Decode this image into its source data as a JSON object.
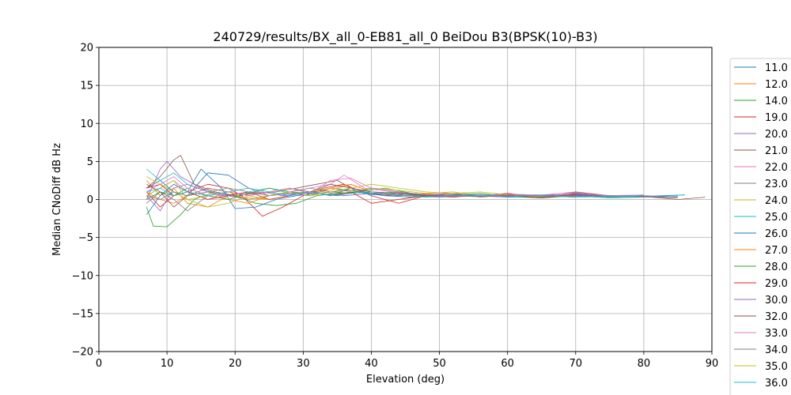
{
  "chart_data": {
    "type": "line",
    "title": "240729/results/BX_all_0-EB81_all_0 BeiDou B3(BPSK(10)-B3)",
    "xlabel": "Elevation (deg)",
    "ylabel": "Median CNoDiff dB Hz",
    "xlim": [
      0,
      90
    ],
    "ylim": [
      -20,
      20
    ],
    "xticks": [
      "0",
      "10",
      "20",
      "30",
      "40",
      "50",
      "60",
      "70",
      "80",
      "90"
    ],
    "yticks": [
      "20",
      "15",
      "10",
      "5",
      "0",
      "−5",
      "−10",
      "−15",
      "−20"
    ],
    "grid": true,
    "legend_position": "right, outside plot (clipped at bottom)",
    "series": [
      {
        "name": "11.0",
        "color": "#1f77b4",
        "x": [
          7,
          9,
          11,
          13,
          16,
          19,
          22,
          25,
          28,
          31,
          34,
          37,
          40,
          45,
          50,
          55,
          60,
          65,
          70,
          75,
          80,
          86
        ],
        "y": [
          1.5,
          2.5,
          1.0,
          0.5,
          3.5,
          3.2,
          1.5,
          0.5,
          1.0,
          0.8,
          1.5,
          1.2,
          0.8,
          0.5,
          0.6,
          0.4,
          0.5,
          0.3,
          0.8,
          0.5,
          0.4,
          0.6
        ]
      },
      {
        "name": "12.0",
        "color": "#ff7f0e",
        "x": [
          7,
          9,
          11,
          13,
          16,
          19,
          22,
          25,
          28,
          31,
          34,
          37,
          40,
          45,
          50,
          55,
          60,
          65,
          70,
          73
        ],
        "y": [
          2.5,
          0.5,
          1.5,
          -0.5,
          -1.0,
          0.5,
          0.2,
          0.0,
          0.5,
          1.0,
          1.2,
          2.0,
          1.0,
          0.8,
          0.6,
          0.5,
          0.3,
          0.4,
          0.6,
          0.3
        ]
      },
      {
        "name": "14.0",
        "color": "#2ca02c",
        "x": [
          7,
          8,
          10,
          12,
          14,
          17,
          20,
          23,
          26,
          29,
          32,
          35,
          38,
          42,
          46,
          50,
          55,
          60,
          65,
          70
        ],
        "y": [
          -1.0,
          -3.5,
          -3.6,
          -2.0,
          0.0,
          1.0,
          0.5,
          -0.5,
          -0.8,
          -0.5,
          0.5,
          0.8,
          1.0,
          1.5,
          0.8,
          0.5,
          0.6,
          0.4,
          0.2,
          0.5
        ]
      },
      {
        "name": "19.0",
        "color": "#d62728",
        "x": [
          7,
          9,
          11,
          13,
          16,
          19,
          21,
          24,
          27,
          30,
          33,
          36,
          40,
          44,
          48,
          52,
          56,
          60,
          65,
          70
        ],
        "y": [
          1.0,
          -1.0,
          0.5,
          1.0,
          2.0,
          1.5,
          0.5,
          -2.2,
          -1.0,
          0.5,
          1.5,
          2.0,
          0.5,
          -0.5,
          0.5,
          0.8,
          0.5,
          0.8,
          0.3,
          0.5
        ]
      },
      {
        "name": "20.0",
        "color": "#9467bd",
        "x": [
          7,
          9,
          10,
          12,
          15,
          18,
          21,
          24,
          27,
          30,
          33,
          36,
          40,
          45,
          50,
          55,
          60,
          65,
          70,
          75,
          80
        ],
        "y": [
          0.0,
          4.0,
          5.0,
          3.0,
          1.5,
          0.5,
          0.8,
          1.0,
          0.5,
          0.8,
          1.0,
          0.5,
          0.8,
          0.5,
          0.3,
          0.6,
          0.4,
          0.5,
          0.7,
          0.3,
          0.5
        ]
      },
      {
        "name": "21.0",
        "color": "#8c564b",
        "x": [
          7,
          9,
          11,
          12,
          14,
          17,
          20,
          23,
          26,
          29,
          32,
          35,
          38,
          42,
          46,
          50,
          55,
          60,
          65,
          70,
          75,
          80,
          85,
          89
        ],
        "y": [
          1.5,
          3.0,
          5.2,
          5.8,
          2.0,
          1.0,
          0.5,
          0.8,
          1.0,
          1.5,
          2.0,
          2.5,
          1.0,
          0.5,
          0.8,
          0.5,
          0.6,
          0.4,
          0.5,
          1.0,
          0.5,
          0.4,
          0.0,
          0.3
        ]
      },
      {
        "name": "22.0",
        "color": "#e377c2",
        "x": [
          7,
          9,
          11,
          13,
          16,
          19,
          22,
          25,
          28,
          31,
          34,
          36,
          39,
          43,
          47,
          51,
          55,
          60,
          65,
          70,
          75,
          80
        ],
        "y": [
          0.5,
          1.5,
          2.5,
          1.0,
          0.0,
          1.0,
          1.5,
          0.5,
          1.0,
          1.5,
          2.0,
          3.2,
          1.5,
          1.0,
          0.6,
          0.8,
          0.5,
          0.7,
          0.4,
          0.8,
          0.5,
          0.6
        ]
      },
      {
        "name": "23.0",
        "color": "#7f7f7f",
        "x": [
          7,
          9,
          11,
          13,
          16,
          19,
          22,
          25,
          28,
          31,
          34,
          37,
          40,
          44,
          48,
          52,
          56,
          60,
          65,
          70,
          75,
          80,
          85
        ],
        "y": [
          -0.5,
          1.0,
          0.0,
          -1.5,
          0.5,
          1.0,
          0.0,
          0.5,
          0.8,
          1.0,
          0.5,
          1.5,
          1.0,
          0.6,
          0.5,
          0.8,
          0.3,
          0.6,
          0.4,
          0.5,
          0.3,
          0.4,
          0.2
        ]
      },
      {
        "name": "24.0",
        "color": "#bcbd22",
        "x": [
          7,
          9,
          11,
          13,
          16,
          19,
          22,
          25,
          28,
          31,
          34,
          37,
          40,
          44,
          48,
          52,
          56,
          60,
          65
        ],
        "y": [
          3.0,
          2.0,
          1.0,
          0.0,
          -1.0,
          -0.5,
          0.5,
          0.0,
          0.5,
          1.0,
          1.5,
          1.0,
          1.5,
          1.2,
          0.8,
          1.0,
          0.5,
          0.6,
          0.4
        ]
      },
      {
        "name": "25.0",
        "color": "#17becf",
        "x": [
          7,
          9,
          11,
          13,
          16,
          19,
          22,
          25,
          28,
          31,
          34,
          37,
          40,
          44,
          48,
          52,
          56,
          60,
          65,
          70,
          75,
          80,
          86
        ],
        "y": [
          4.0,
          2.5,
          3.5,
          2.0,
          1.0,
          0.5,
          1.0,
          1.5,
          0.8,
          0.5,
          1.0,
          1.2,
          0.6,
          0.8,
          0.4,
          0.5,
          0.6,
          0.3,
          0.4,
          0.5,
          0.2,
          0.3,
          0.6
        ]
      },
      {
        "name": "26.0",
        "color": "#1f77b4",
        "x": [
          7,
          9,
          11,
          13,
          15,
          18,
          20,
          23,
          26,
          29,
          32,
          35,
          38,
          42,
          46,
          50,
          55,
          60,
          65,
          70,
          75,
          80
        ],
        "y": [
          -2.0,
          0.5,
          2.0,
          1.0,
          4.0,
          1.5,
          -1.2,
          -1.0,
          0.0,
          0.5,
          0.8,
          0.5,
          1.0,
          0.5,
          0.3,
          0.6,
          0.4,
          0.5,
          0.3,
          0.6,
          0.4,
          0.5
        ]
      },
      {
        "name": "27.0",
        "color": "#ff7f0e",
        "x": [
          7,
          9,
          11,
          13,
          16,
          19,
          22,
          25,
          28,
          31,
          34,
          37,
          40,
          44,
          48,
          52,
          56,
          60,
          65,
          70
        ],
        "y": [
          1.0,
          0.0,
          -0.5,
          0.5,
          1.0,
          0.0,
          -0.5,
          0.5,
          1.0,
          0.5,
          1.5,
          2.0,
          1.0,
          0.5,
          0.8,
          0.4,
          0.5,
          0.6,
          0.3,
          0.5
        ]
      },
      {
        "name": "28.0",
        "color": "#2ca02c",
        "x": [
          7,
          9,
          11,
          13,
          16,
          19,
          22,
          25,
          28,
          31,
          34,
          37,
          40,
          44,
          48,
          52,
          56,
          60,
          65,
          70
        ],
        "y": [
          0.0,
          1.0,
          0.5,
          1.5,
          0.5,
          0.0,
          0.8,
          1.5,
          1.0,
          0.5,
          1.0,
          0.8,
          1.5,
          1.0,
          0.5,
          0.6,
          0.8,
          0.4,
          0.5,
          0.3
        ]
      },
      {
        "name": "29.0",
        "color": "#d62728",
        "x": [
          7,
          9,
          11,
          13,
          16,
          19,
          22,
          25,
          28,
          31,
          34,
          37,
          40,
          44,
          48,
          52,
          56,
          60,
          65,
          70
        ],
        "y": [
          1.5,
          2.0,
          0.5,
          1.0,
          0.0,
          0.5,
          1.0,
          0.0,
          0.5,
          1.0,
          0.5,
          1.0,
          -0.5,
          0.0,
          0.5,
          0.3,
          0.6,
          0.5,
          0.2,
          0.6
        ]
      },
      {
        "name": "30.0",
        "color": "#9467bd",
        "x": [
          7,
          9,
          11,
          13,
          16,
          19,
          22,
          25,
          28,
          31,
          34,
          37,
          40,
          44,
          48,
          52,
          56,
          60,
          65,
          70,
          75,
          80,
          85
        ],
        "y": [
          0.5,
          -1.5,
          1.5,
          2.0,
          1.0,
          0.5,
          0.0,
          0.5,
          0.8,
          0.5,
          1.0,
          1.5,
          0.8,
          0.5,
          0.6,
          0.4,
          0.5,
          0.3,
          0.6,
          0.5,
          0.4,
          0.5,
          0.3
        ]
      },
      {
        "name": "32.0",
        "color": "#8c564b",
        "x": [
          7,
          9,
          11,
          13,
          16,
          19,
          22,
          25,
          28,
          31,
          34,
          37,
          40,
          44,
          48,
          52,
          56,
          60,
          65,
          70,
          75,
          80
        ],
        "y": [
          2.0,
          1.0,
          -1.0,
          0.5,
          1.5,
          1.0,
          0.5,
          1.0,
          1.5,
          1.0,
          2.0,
          1.5,
          1.0,
          0.8,
          0.5,
          0.6,
          0.4,
          0.5,
          0.2,
          0.8,
          0.4,
          0.5
        ]
      },
      {
        "name": "33.0",
        "color": "#e377c2",
        "x": [
          7,
          9,
          11,
          13,
          16,
          19,
          22,
          25,
          28,
          31,
          34,
          37,
          40,
          44,
          48,
          52,
          56,
          60,
          65,
          70,
          75
        ],
        "y": [
          1.0,
          2.0,
          3.0,
          1.5,
          0.5,
          1.0,
          0.5,
          1.0,
          1.5,
          0.8,
          2.5,
          2.8,
          1.5,
          1.0,
          0.6,
          0.8,
          0.5,
          0.7,
          0.6,
          0.9,
          0.5
        ]
      },
      {
        "name": "34.0",
        "color": "#7f7f7f",
        "x": [
          7,
          9,
          11,
          13,
          16,
          19,
          22,
          25,
          28,
          31,
          34,
          37,
          40,
          44,
          48,
          52,
          56,
          60,
          65,
          70,
          75,
          80,
          85
        ],
        "y": [
          0.5,
          0.0,
          1.0,
          0.5,
          1.0,
          1.5,
          1.0,
          0.5,
          1.0,
          1.5,
          1.0,
          1.2,
          0.8,
          1.0,
          0.6,
          0.5,
          0.4,
          0.6,
          0.5,
          0.4,
          0.5,
          0.3,
          0.4
        ]
      },
      {
        "name": "35.0",
        "color": "#bcbd22",
        "x": [
          7,
          9,
          11,
          13,
          16,
          19,
          22,
          25,
          28,
          31,
          34,
          37,
          40,
          44,
          48,
          52,
          56,
          60
        ],
        "y": [
          0.5,
          1.5,
          2.5,
          0.0,
          0.5,
          1.0,
          0.0,
          0.5,
          1.0,
          0.5,
          1.0,
          1.5,
          2.0,
          1.5,
          1.0,
          0.8,
          1.0,
          0.6
        ]
      },
      {
        "name": "36.0",
        "color": "#17becf",
        "x": [
          7,
          9,
          11,
          13,
          16,
          19,
          22,
          25,
          28,
          31,
          34,
          37,
          40,
          44,
          48,
          52,
          56,
          60,
          65,
          70,
          75,
          80
        ],
        "y": [
          1.0,
          1.5,
          0.5,
          1.0,
          0.5,
          1.0,
          1.5,
          1.0,
          0.5,
          1.0,
          0.5,
          0.8,
          1.0,
          0.6,
          0.3,
          0.5,
          0.6,
          0.4,
          0.5,
          0.3,
          0.4,
          0.5
        ]
      }
    ]
  }
}
